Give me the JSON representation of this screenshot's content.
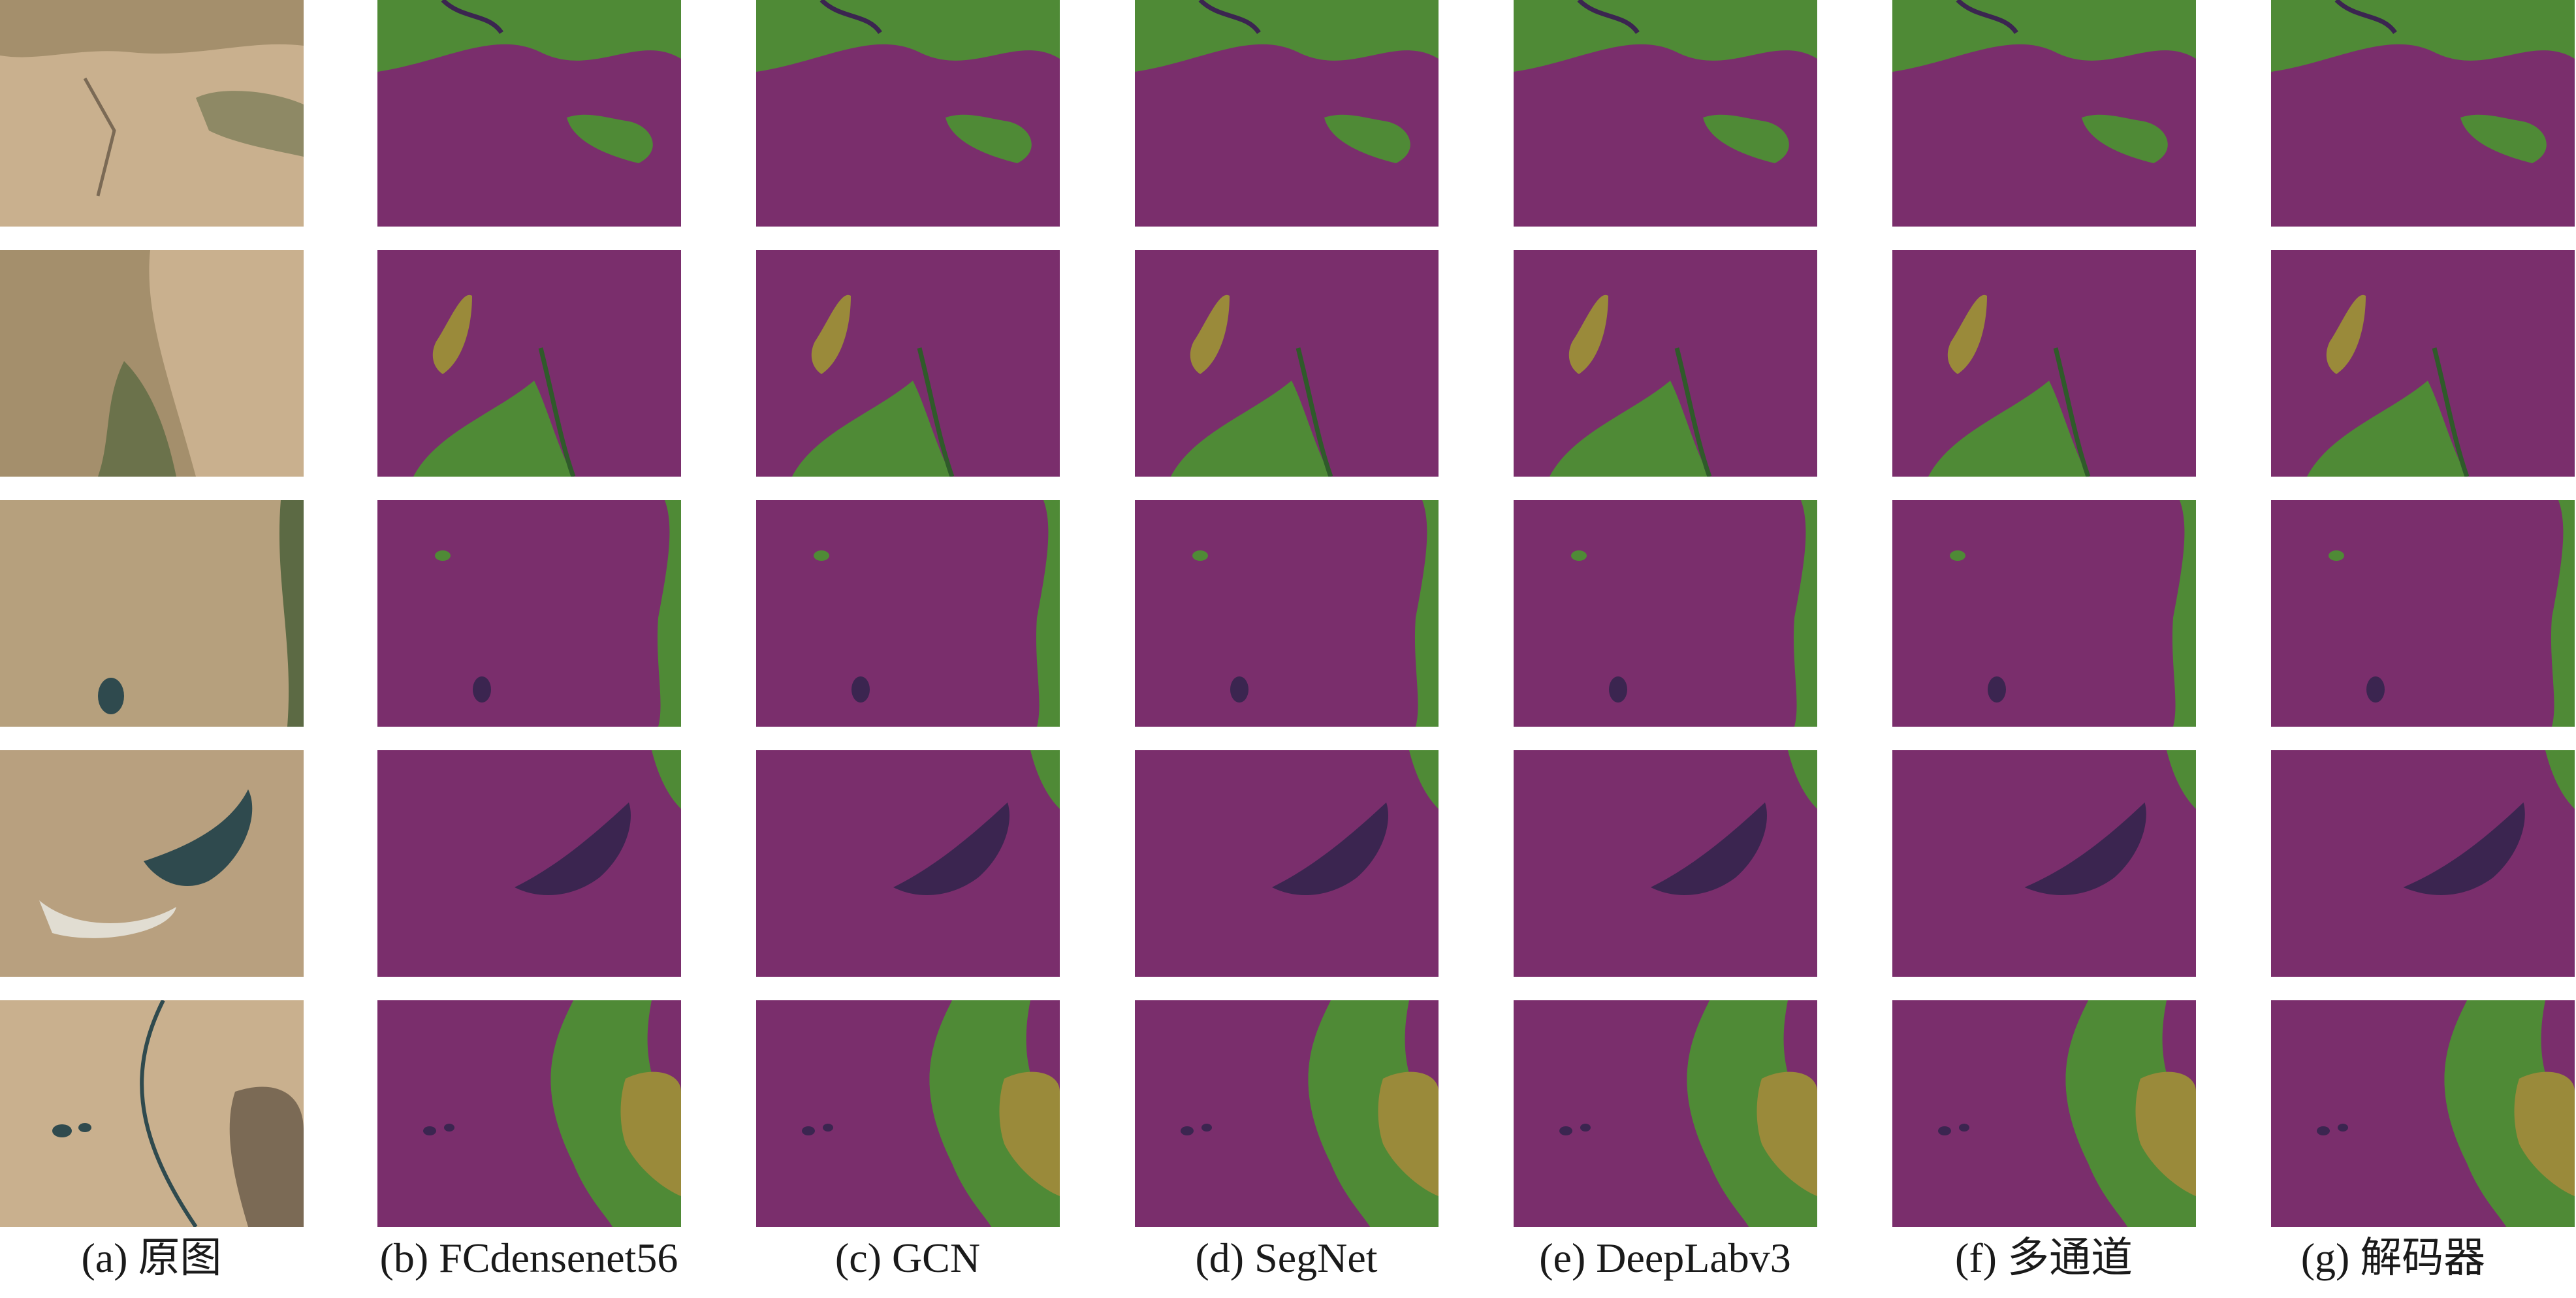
{
  "figure": {
    "columns": [
      {
        "id": "a",
        "label": "(a) 原图",
        "kind": "source-image"
      },
      {
        "id": "b",
        "label": "(b) FCdensenet56",
        "kind": "segmentation"
      },
      {
        "id": "c",
        "label": "(c) GCN",
        "kind": "segmentation"
      },
      {
        "id": "d",
        "label": "(d) SegNet",
        "kind": "segmentation"
      },
      {
        "id": "e",
        "label": "(e) DeepLabv3",
        "kind": "segmentation"
      },
      {
        "id": "f",
        "label": "(f) 多通道",
        "kind": "segmentation"
      },
      {
        "id": "g",
        "label": "(g) 解码器",
        "kind": "segmentation"
      }
    ],
    "row_count": 5,
    "class_colors": {
      "class_1": "#7a2e6c",
      "class_2": "#4f8a36",
      "class_3": "#9a8a3a",
      "class_4": "#3b2550",
      "class_5": "#2f5a2a"
    },
    "source_palette": {
      "sand": "#c9b08e",
      "dry_grass": "#a48f6c",
      "vegetation": "#5c6a44",
      "water": "#2f4a4e",
      "salt": "#e1ddd2",
      "rock": "#7b6a55"
    }
  }
}
